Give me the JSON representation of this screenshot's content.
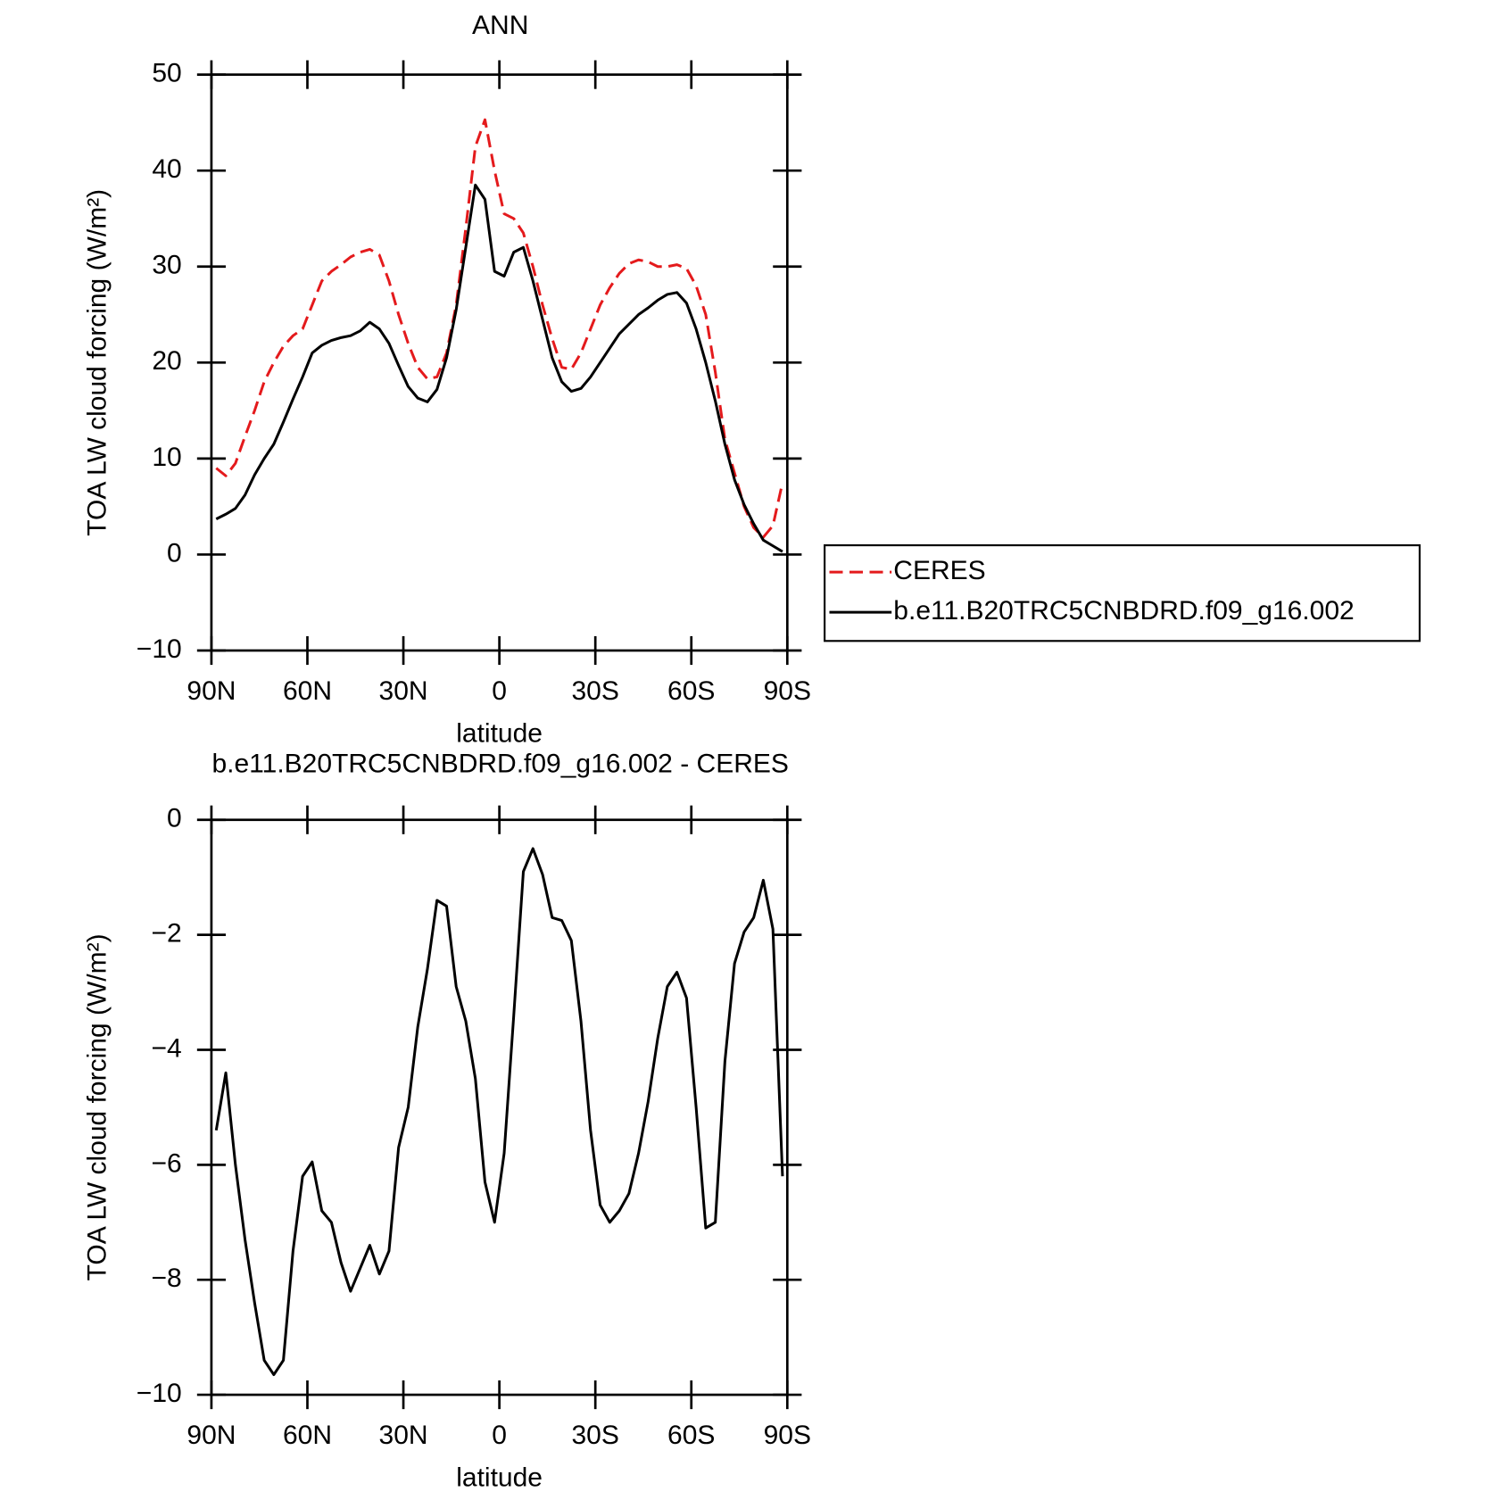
{
  "chart_data": [
    {
      "type": "line",
      "title": "ANN",
      "xlabel": "latitude",
      "ylabel": "TOA LW cloud forcing (W/m²)",
      "x": [
        88.5,
        85.5,
        82.5,
        79.5,
        76.5,
        73.5,
        70.5,
        67.5,
        64.5,
        61.5,
        58.5,
        55.5,
        52.5,
        49.5,
        46.5,
        43.5,
        40.5,
        37.5,
        34.5,
        31.5,
        28.5,
        25.5,
        22.5,
        19.5,
        16.5,
        13.5,
        10.5,
        7.5,
        4.5,
        1.5,
        -1.5,
        -4.5,
        -7.5,
        -10.5,
        -13.5,
        -16.5,
        -19.5,
        -22.5,
        -25.5,
        -28.5,
        -31.5,
        -34.5,
        -37.5,
        -40.5,
        -43.5,
        -46.5,
        -49.5,
        -52.5,
        -55.5,
        -58.5,
        -61.5,
        -64.5,
        -67.5,
        -70.5,
        -73.5,
        -76.5,
        -79.5,
        -82.5,
        -85.5,
        -88.5
      ],
      "series": [
        {
          "name": "CERES",
          "color": "#e41a1c",
          "linestyle": "dashed",
          "values": [
            9,
            8.2,
            9.5,
            12.3,
            15,
            18,
            20,
            21.7,
            22.8,
            23.5,
            26,
            28.5,
            29.5,
            30.2,
            31,
            31.5,
            31.8,
            31.2,
            28.5,
            25,
            22,
            19.5,
            18.3,
            18.5,
            21,
            26,
            34,
            42.5,
            45.3,
            40,
            35.5,
            35,
            33.5,
            30,
            26,
            22.5,
            19.5,
            19.3,
            21,
            23.5,
            26,
            27.8,
            29.3,
            30.3,
            30.7,
            30.5,
            30,
            30,
            30.2,
            29.8,
            28,
            25,
            19,
            12,
            8.5,
            5,
            2.8,
            1.8,
            3,
            7.5
          ]
        },
        {
          "name": "b.e11.B20TRC5CNBDRD.f09_g16.002",
          "color": "#000000",
          "linestyle": "solid",
          "values": [
            3.7,
            4.2,
            4.8,
            6.2,
            8.3,
            10,
            11.5,
            13.8,
            16.2,
            18.5,
            21,
            21.8,
            22.3,
            22.6,
            22.8,
            23.3,
            24.2,
            23.5,
            22,
            19.7,
            17.5,
            16.3,
            15.9,
            17.2,
            20.5,
            25.5,
            32,
            38.5,
            37,
            29.5,
            29,
            31.5,
            32,
            28.5,
            24.5,
            20.5,
            18,
            17,
            17.3,
            18.5,
            20,
            21.5,
            23,
            24,
            25,
            25.7,
            26.5,
            27.1,
            27.3,
            26.2,
            23.5,
            20,
            16,
            11.5,
            7.8,
            5.2,
            3.2,
            1.5,
            0.9,
            0.3
          ]
        }
      ],
      "xlim": [
        90,
        -90
      ],
      "xticks": [
        {
          "value": 90,
          "label": "90N"
        },
        {
          "value": 60,
          "label": "60N"
        },
        {
          "value": 30,
          "label": "30N"
        },
        0,
        {
          "value": -30,
          "label": "30S"
        },
        {
          "value": -60,
          "label": "60S"
        },
        {
          "value": -90,
          "label": "90S"
        }
      ],
      "ylim": [
        -10,
        50
      ],
      "yticks": [
        {
          "value": -10,
          "label": "−10"
        },
        0,
        10,
        20,
        30,
        40,
        50
      ],
      "legend": "right"
    },
    {
      "type": "line",
      "title": "b.e11.B20TRC5CNBDRD.f09_g16.002 - CERES",
      "xlabel": "latitude",
      "ylabel": "TOA LW cloud forcing (W/m²)",
      "x": [
        88.5,
        85.5,
        82.5,
        79.5,
        76.5,
        73.5,
        70.5,
        67.5,
        64.5,
        61.5,
        58.5,
        55.5,
        52.5,
        49.5,
        46.5,
        43.5,
        40.5,
        37.5,
        34.5,
        31.5,
        28.5,
        25.5,
        22.5,
        19.5,
        16.5,
        13.5,
        10.5,
        7.5,
        4.5,
        1.5,
        -1.5,
        -4.5,
        -7.5,
        -10.5,
        -13.5,
        -16.5,
        -19.5,
        -22.5,
        -25.5,
        -28.5,
        -31.5,
        -34.5,
        -37.5,
        -40.5,
        -43.5,
        -46.5,
        -49.5,
        -52.5,
        -55.5,
        -58.5,
        -61.5,
        -64.5,
        -67.5,
        -70.5,
        -73.5,
        -76.5,
        -79.5,
        -82.5,
        -85.5,
        -88.5
      ],
      "series": [
        {
          "name": "b.e11.B20TRC5CNBDRD.f09_g16.002 - CERES",
          "color": "#000000",
          "linestyle": "solid",
          "values": [
            -5.4,
            -4.4,
            -6.0,
            -7.3,
            -8.4,
            -9.4,
            -9.65,
            -9.4,
            -7.5,
            -6.2,
            -5.95,
            -6.8,
            -7.0,
            -7.7,
            -8.2,
            -7.8,
            -7.4,
            -7.9,
            -7.5,
            -5.7,
            -5.0,
            -3.6,
            -2.6,
            -1.4,
            -1.5,
            -2.9,
            -3.5,
            -4.5,
            -6.3,
            -7.0,
            -5.8,
            -3.4,
            -0.9,
            -0.5,
            -0.95,
            -1.7,
            -1.75,
            -2.1,
            -3.5,
            -5.4,
            -6.7,
            -7.0,
            -6.8,
            -6.5,
            -5.8,
            -4.9,
            -3.8,
            -2.9,
            -2.65,
            -3.1,
            -5.0,
            -7.1,
            -7.0,
            -4.2,
            -2.5,
            -1.95,
            -1.7,
            -1.05,
            -1.9,
            -6.2
          ]
        }
      ],
      "xlim": [
        90,
        -90
      ],
      "xticks": [
        {
          "value": 90,
          "label": "90N"
        },
        {
          "value": 60,
          "label": "60N"
        },
        {
          "value": 30,
          "label": "30N"
        },
        0,
        {
          "value": -30,
          "label": "30S"
        },
        {
          "value": -60,
          "label": "60S"
        },
        {
          "value": -90,
          "label": "90S"
        }
      ],
      "ylim": [
        -10,
        0
      ],
      "yticks": [
        {
          "value": -10,
          "label": "−10"
        },
        {
          "value": -8,
          "label": "−8"
        },
        {
          "value": -6,
          "label": "−6"
        },
        {
          "value": -4,
          "label": "−4"
        },
        {
          "value": -2,
          "label": "−2"
        },
        0
      ]
    }
  ]
}
